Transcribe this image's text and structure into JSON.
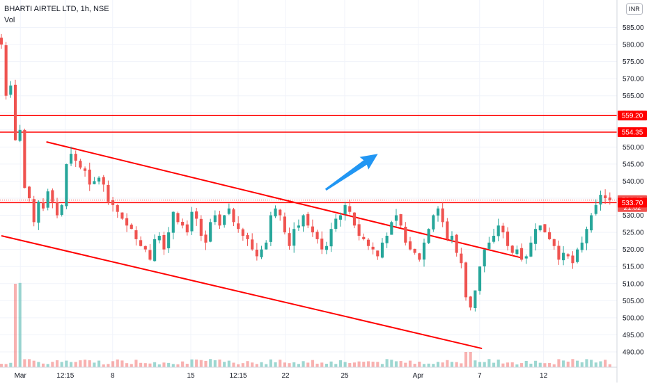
{
  "header": {
    "symbol_line": "BHARTI AIRTEL LTD, 1h, NSE",
    "volume_label": "Vol",
    "currency": "INR"
  },
  "colors": {
    "up": "#26a69a",
    "down": "#ef5350",
    "drawing": "#ff0000",
    "arrow": "#2196f3",
    "grid": "#f0f3fa",
    "last_price_tag": "#ef5350"
  },
  "chart_data": {
    "type": "candlestick",
    "title": "BHARTI AIRTEL LTD, 1h, NSE",
    "ylim": [
      486,
      591
    ],
    "grid": true,
    "y_ticks": [
      585,
      580,
      575,
      570,
      565,
      560,
      555,
      550,
      545,
      540,
      535,
      530,
      525,
      520,
      515,
      510,
      505,
      500,
      495,
      490
    ],
    "y_tick_labels": [
      "585.00",
      "580.00",
      "575.00",
      "570.00",
      "565.00",
      "560.00",
      "555.00",
      "550.00",
      "545.00",
      "540.00",
      "535.00",
      "530.00",
      "525.00",
      "520.00",
      "515.00",
      "510.00",
      "505.00",
      "500.00",
      "495.00",
      "490.00"
    ],
    "x_ticks": [
      {
        "bar": 8,
        "label": "Mar"
      },
      {
        "bar": 27,
        "label": "12:15"
      },
      {
        "bar": 47,
        "label": "8"
      },
      {
        "bar": 80,
        "label": "15"
      },
      {
        "bar": 100,
        "label": "12:15"
      },
      {
        "bar": 120,
        "label": "22"
      },
      {
        "bar": 145,
        "label": "25"
      },
      {
        "bar": 176,
        "label": "Apr"
      },
      {
        "bar": 202,
        "label": "7"
      },
      {
        "bar": 229,
        "label": "12"
      }
    ],
    "bars_per_px_note": "bar index scale",
    "x_range": [
      0,
      257
    ],
    "closes": [
      580,
      565,
      568,
      552,
      555,
      538,
      535,
      528,
      534,
      532,
      537,
      534,
      530,
      533,
      545,
      548,
      546,
      544,
      543,
      539,
      540,
      541,
      539,
      534,
      533,
      531,
      529,
      527,
      526,
      523,
      521,
      520,
      517,
      523,
      524,
      520,
      525,
      531,
      528,
      527,
      525,
      531,
      529,
      524,
      522,
      528,
      530,
      527,
      530,
      532,
      528,
      526,
      524,
      523,
      520,
      518,
      520,
      522,
      530,
      532,
      530,
      525,
      521,
      526,
      527,
      530,
      527,
      525,
      523,
      520,
      521,
      526,
      529,
      530,
      533,
      531,
      527,
      524,
      523,
      521,
      520,
      518,
      522,
      524,
      528,
      530,
      527,
      522,
      520,
      519,
      517,
      522,
      526,
      530,
      532,
      528,
      523,
      524,
      519,
      516,
      506,
      503,
      508,
      515,
      520,
      522,
      524,
      527,
      525,
      521,
      519,
      520,
      517,
      518,
      522,
      526,
      527,
      525,
      523,
      521,
      517,
      519,
      518,
      516,
      520,
      522,
      526,
      530,
      533,
      536,
      535,
      534.45
    ],
    "horizontal_levels": [
      559.2,
      554.35,
      534.45,
      533.7
    ],
    "level_labels": [
      "559.20",
      "554.35",
      "534.45",
      "533.70"
    ],
    "last_price": {
      "value": 534.45,
      "label": "534.45",
      "countdown": "21:02"
    },
    "trendlines": [
      {
        "from": {
          "bar": 19,
          "price": 551.5
        },
        "to": {
          "bar": 220,
          "price": 517.5
        }
      },
      {
        "from": {
          "bar": 0,
          "price": 524
        },
        "to": {
          "bar": 203,
          "price": 491
        }
      }
    ],
    "arrow": {
      "from": {
        "bar": 137,
        "price": 537.5
      },
      "to": {
        "bar": 159,
        "price": 548
      }
    }
  }
}
